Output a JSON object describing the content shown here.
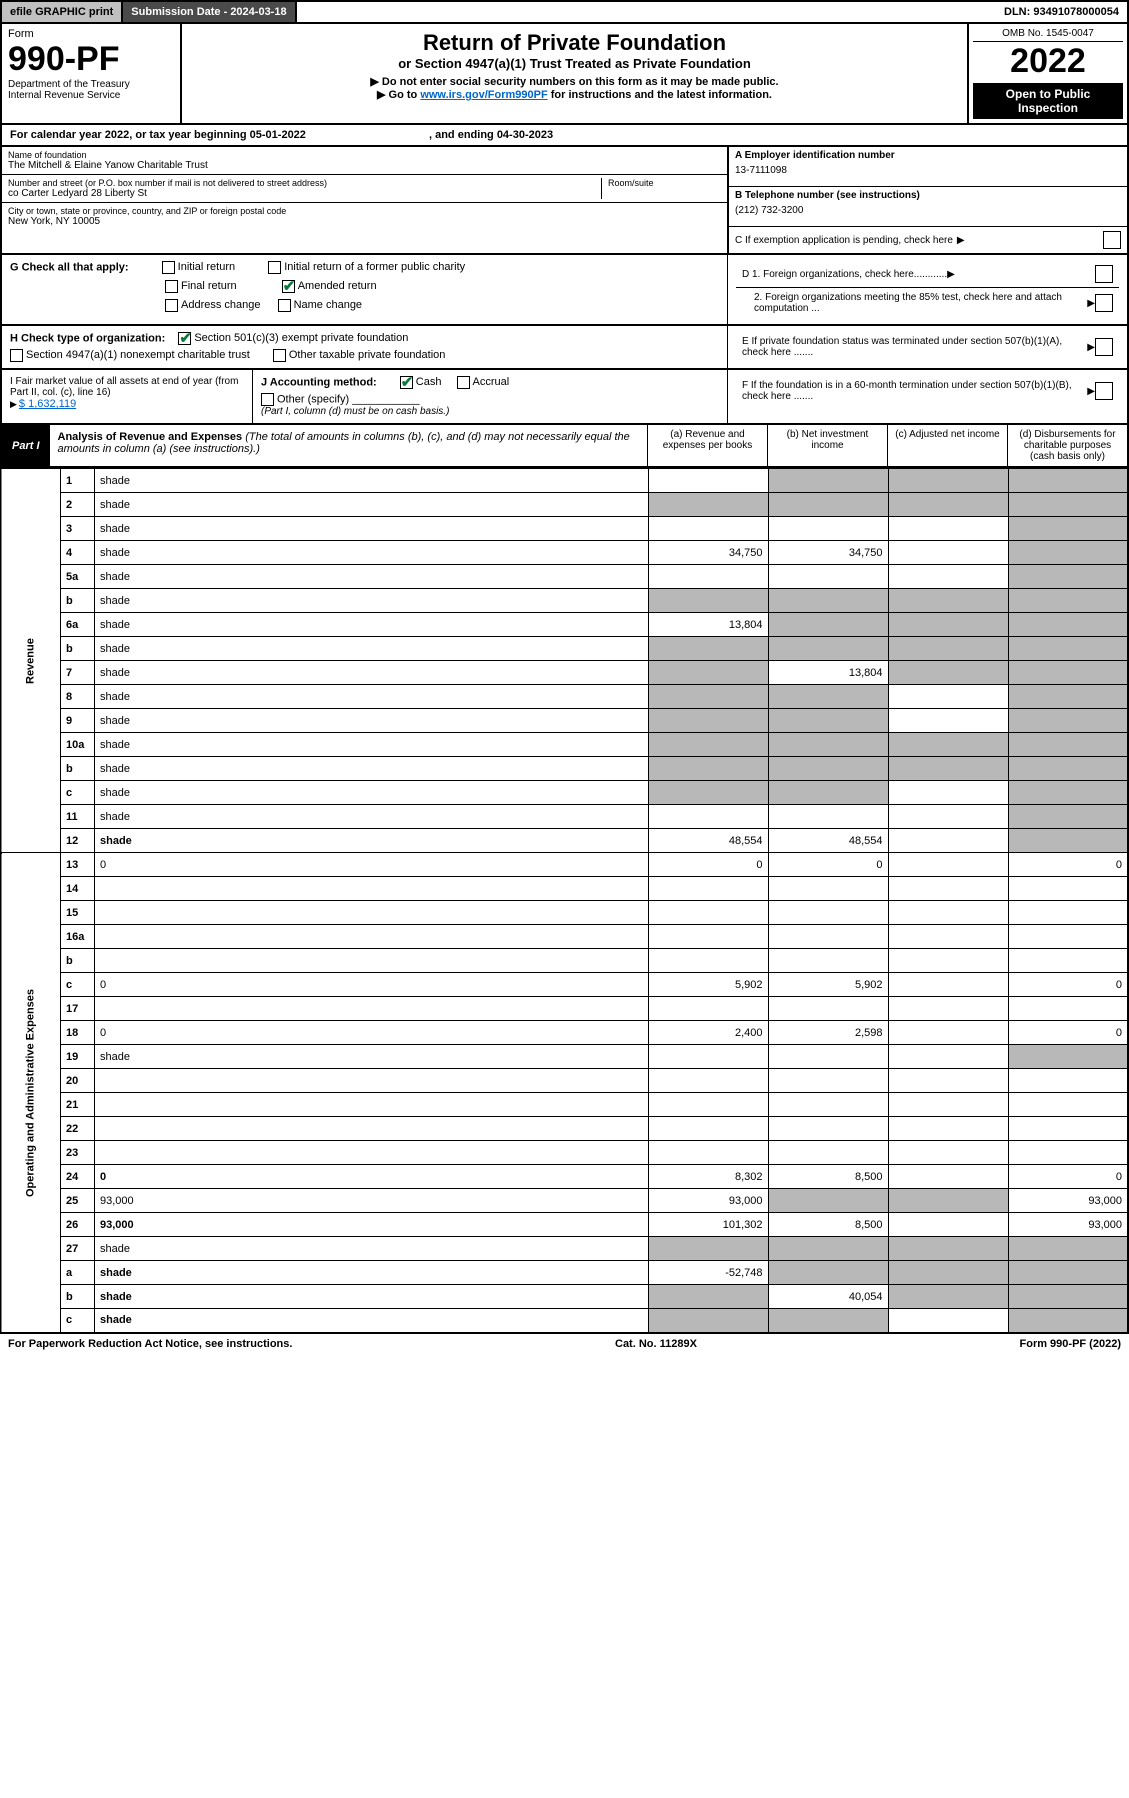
{
  "topbar": {
    "efile": "efile GRAPHIC print",
    "subdate_label": "Submission Date - 2024-03-18",
    "dln": "DLN: 93491078000054"
  },
  "header": {
    "form_word": "Form",
    "form_no": "990-PF",
    "dept": "Department of the Treasury",
    "irs": "Internal Revenue Service",
    "title": "Return of Private Foundation",
    "subtitle": "or Section 4947(a)(1) Trust Treated as Private Foundation",
    "note1": "▶ Do not enter social security numbers on this form as it may be made public.",
    "note2_pre": "▶ Go to ",
    "note2_link": "www.irs.gov/Form990PF",
    "note2_post": " for instructions and the latest information.",
    "omb": "OMB No. 1545-0047",
    "year": "2022",
    "inspect": "Open to Public Inspection"
  },
  "cal": {
    "text_a": "For calendar year 2022, or tax year beginning 05-01-2022",
    "text_b": ", and ending 04-30-2023"
  },
  "ident": {
    "name_label": "Name of foundation",
    "name": "The Mitchell & Elaine Yanow Charitable Trust",
    "addr_label": "Number and street (or P.O. box number if mail is not delivered to street address)",
    "addr": "co Carter Ledyard 28 Liberty St",
    "room_label": "Room/suite",
    "city_label": "City or town, state or province, country, and ZIP or foreign postal code",
    "city": "New York, NY  10005",
    "a_label": "A Employer identification number",
    "a_val": "13-7111098",
    "b_label": "B Telephone number (see instructions)",
    "b_val": "(212) 732-3200",
    "c_label": "C If exemption application is pending, check here"
  },
  "g": {
    "label": "G Check all that apply:",
    "opts": [
      "Initial return",
      "Final return",
      "Address change",
      "Initial return of a former public charity",
      "Amended return",
      "Name change"
    ]
  },
  "h": {
    "label": "H Check type of organization:",
    "o1": "Section 501(c)(3) exempt private foundation",
    "o2": "Section 4947(a)(1) nonexempt charitable trust",
    "o3": "Other taxable private foundation"
  },
  "i": {
    "label": "I Fair market value of all assets at end of year (from Part II, col. (c), line 16)",
    "val": "$  1,632,119"
  },
  "j": {
    "label": "J Accounting method:",
    "cash": "Cash",
    "accrual": "Accrual",
    "other": "Other (specify)",
    "note": "(Part I, column (d) must be on cash basis.)"
  },
  "right": {
    "d1": "D 1. Foreign organizations, check here............",
    "d2": "2. Foreign organizations meeting the 85% test, check here and attach computation ...",
    "e": "E  If private foundation status was terminated under section 507(b)(1)(A), check here .......",
    "f": "F  If the foundation is in a 60-month termination under section 507(b)(1)(B), check here ......."
  },
  "part1": {
    "badge": "Part I",
    "title": "Analysis of Revenue and Expenses",
    "note": " (The total of amounts in columns (b), (c), and (d) may not necessarily equal the amounts in column (a) (see instructions).)",
    "cols": {
      "a": "(a)   Revenue and expenses per books",
      "b": "(b)   Net investment income",
      "c": "(c)   Adjusted net income",
      "d": "(d)   Disbursements for charitable purposes (cash basis only)"
    }
  },
  "rows": [
    {
      "n": "1",
      "d": "shade",
      "a": "",
      "b": "shade",
      "c": "shade"
    },
    {
      "n": "2",
      "d": "shade",
      "a": "shade",
      "b": "shade",
      "c": "shade"
    },
    {
      "n": "3",
      "d": "shade",
      "a": "",
      "b": "",
      "c": ""
    },
    {
      "n": "4",
      "d": "shade",
      "a": "34,750",
      "b": "34,750",
      "c": ""
    },
    {
      "n": "5a",
      "d": "shade",
      "a": "",
      "b": "",
      "c": ""
    },
    {
      "n": "b",
      "d": "shade",
      "a": "shade",
      "b": "shade",
      "c": "shade"
    },
    {
      "n": "6a",
      "d": "shade",
      "a": "13,804",
      "b": "shade",
      "c": "shade"
    },
    {
      "n": "b",
      "d": "shade",
      "a": "shade",
      "b": "shade",
      "c": "shade"
    },
    {
      "n": "7",
      "d": "shade",
      "a": "shade",
      "b": "13,804",
      "c": "shade"
    },
    {
      "n": "8",
      "d": "shade",
      "a": "shade",
      "b": "shade",
      "c": ""
    },
    {
      "n": "9",
      "d": "shade",
      "a": "shade",
      "b": "shade",
      "c": ""
    },
    {
      "n": "10a",
      "d": "shade",
      "a": "shade",
      "b": "shade",
      "c": "shade"
    },
    {
      "n": "b",
      "d": "shade",
      "a": "shade",
      "b": "shade",
      "c": "shade"
    },
    {
      "n": "c",
      "d": "shade",
      "a": "shade",
      "b": "shade",
      "c": ""
    },
    {
      "n": "11",
      "d": "shade",
      "a": "",
      "b": "",
      "c": ""
    },
    {
      "n": "12",
      "d": "shade",
      "a": "48,554",
      "b": "48,554",
      "c": "",
      "bold": true
    },
    {
      "n": "13",
      "d": "0",
      "a": "0",
      "b": "0",
      "c": ""
    },
    {
      "n": "14",
      "d": "",
      "a": "",
      "b": "",
      "c": ""
    },
    {
      "n": "15",
      "d": "",
      "a": "",
      "b": "",
      "c": ""
    },
    {
      "n": "16a",
      "d": "",
      "a": "",
      "b": "",
      "c": ""
    },
    {
      "n": "b",
      "d": "",
      "a": "",
      "b": "",
      "c": ""
    },
    {
      "n": "c",
      "d": "0",
      "a": "5,902",
      "b": "5,902",
      "c": ""
    },
    {
      "n": "17",
      "d": "",
      "a": "",
      "b": "",
      "c": ""
    },
    {
      "n": "18",
      "d": "0",
      "a": "2,400",
      "b": "2,598",
      "c": ""
    },
    {
      "n": "19",
      "d": "shade",
      "a": "",
      "b": "",
      "c": ""
    },
    {
      "n": "20",
      "d": "",
      "a": "",
      "b": "",
      "c": ""
    },
    {
      "n": "21",
      "d": "",
      "a": "",
      "b": "",
      "c": ""
    },
    {
      "n": "22",
      "d": "",
      "a": "",
      "b": "",
      "c": ""
    },
    {
      "n": "23",
      "d": "",
      "a": "",
      "b": "",
      "c": ""
    },
    {
      "n": "24",
      "d": "0",
      "a": "8,302",
      "b": "8,500",
      "c": "",
      "bold": true
    },
    {
      "n": "25",
      "d": "93,000",
      "a": "93,000",
      "b": "shade",
      "c": "shade"
    },
    {
      "n": "26",
      "d": "93,000",
      "a": "101,302",
      "b": "8,500",
      "c": "",
      "bold": true
    },
    {
      "n": "27",
      "d": "shade",
      "a": "shade",
      "b": "shade",
      "c": "shade"
    },
    {
      "n": "a",
      "d": "shade",
      "a": "-52,748",
      "b": "shade",
      "c": "shade",
      "bold": true
    },
    {
      "n": "b",
      "d": "shade",
      "a": "shade",
      "b": "40,054",
      "c": "shade",
      "bold": true
    },
    {
      "n": "c",
      "d": "shade",
      "a": "shade",
      "b": "shade",
      "c": "",
      "bold": true
    }
  ],
  "vlabels": {
    "rev": "Revenue",
    "exp": "Operating and Administrative Expenses"
  },
  "footer": {
    "left": "For Paperwork Reduction Act Notice, see instructions.",
    "mid": "Cat. No. 11289X",
    "right": "Form 990-PF (2022)"
  },
  "colors": {
    "shade": "#b8b8b8",
    "link": "#0066cc",
    "check": "#0a7a3a"
  }
}
